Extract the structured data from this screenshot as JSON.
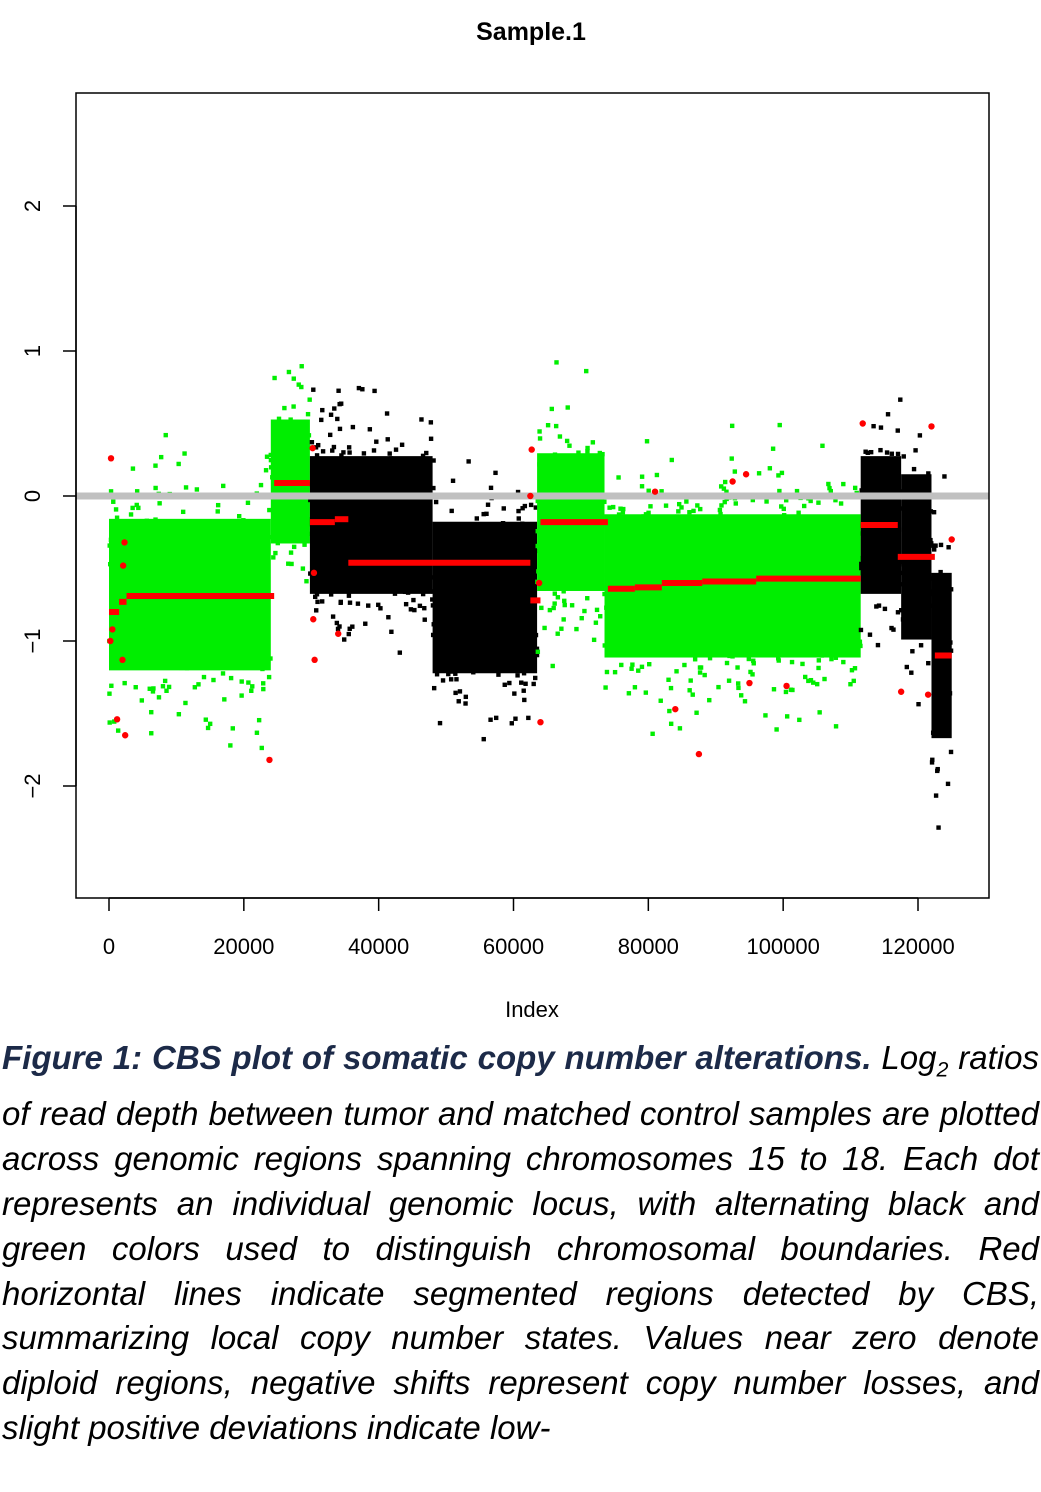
{
  "chart_data": {
    "type": "scatter",
    "title": "Sample.1",
    "xlabel": "Index",
    "ylabel": "",
    "xlim": [
      -5000,
      130000
    ],
    "ylim": [
      -2.75,
      2.75
    ],
    "x_ticks": [
      0,
      20000,
      40000,
      60000,
      80000,
      100000,
      120000
    ],
    "x_tick_labels": [
      "0",
      "20000",
      "40000",
      "60000",
      "80000",
      "100000",
      "120000"
    ],
    "y_ticks": [
      -2,
      -1,
      0,
      1,
      2
    ],
    "y_tick_labels": [
      "−2",
      "−1",
      "0",
      "1",
      "2"
    ],
    "grid": false,
    "reference_line": {
      "y": 0,
      "color": "#c0c0c0"
    },
    "colors": {
      "black_points": "#000000",
      "green_points": "#00ee00",
      "segments": "#ff0000"
    },
    "regions": [
      {
        "color": "green",
        "x_start": 0,
        "x_end": 24000,
        "center": -0.68,
        "spread": 0.55
      },
      {
        "color": "green",
        "x_start": 24000,
        "x_end": 29800,
        "center": 0.1,
        "spread": 0.45
      },
      {
        "color": "black",
        "x_start": 29800,
        "x_end": 48000,
        "center": -0.2,
        "spread": 0.5
      },
      {
        "color": "black",
        "x_start": 48000,
        "x_end": 63500,
        "center": -0.7,
        "spread": 0.55
      },
      {
        "color": "green",
        "x_start": 63500,
        "x_end": 73500,
        "center": -0.18,
        "spread": 0.5
      },
      {
        "color": "green",
        "x_start": 73500,
        "x_end": 111500,
        "center": -0.62,
        "spread": 0.52
      },
      {
        "color": "black",
        "x_start": 111500,
        "x_end": 117500,
        "center": -0.2,
        "spread": 0.5
      },
      {
        "color": "black",
        "x_start": 117500,
        "x_end": 122000,
        "center": -0.42,
        "spread": 0.6
      },
      {
        "color": "black",
        "x_start": 122000,
        "x_end": 125000,
        "center": -1.1,
        "spread": 0.6
      }
    ],
    "segments": [
      {
        "x_start": 0,
        "x_end": 1500,
        "y": -0.8
      },
      {
        "x_start": 1500,
        "x_end": 2600,
        "y": -0.73
      },
      {
        "x_start": 2600,
        "x_end": 24500,
        "y": -0.69
      },
      {
        "x_start": 24500,
        "x_end": 29800,
        "y": 0.09
      },
      {
        "x_start": 29800,
        "x_end": 33500,
        "y": -0.18
      },
      {
        "x_start": 33500,
        "x_end": 35500,
        "y": -0.16
      },
      {
        "x_start": 35500,
        "x_end": 62500,
        "y": -0.46
      },
      {
        "x_start": 62500,
        "x_end": 64000,
        "y": -0.72
      },
      {
        "x_start": 64000,
        "x_end": 74000,
        "y": -0.18
      },
      {
        "x_start": 74000,
        "x_end": 78000,
        "y": -0.64
      },
      {
        "x_start": 78000,
        "x_end": 82000,
        "y": -0.63
      },
      {
        "x_start": 82000,
        "x_end": 88000,
        "y": -0.6
      },
      {
        "x_start": 88000,
        "x_end": 96000,
        "y": -0.59
      },
      {
        "x_start": 96000,
        "x_end": 111500,
        "y": -0.57
      },
      {
        "x_start": 111500,
        "x_end": 117000,
        "y": -0.2
      },
      {
        "x_start": 117000,
        "x_end": 122500,
        "y": -0.42
      },
      {
        "x_start": 122500,
        "x_end": 125000,
        "y": -1.1
      }
    ],
    "outlier_segment_points": [
      {
        "x": 300,
        "y": 0.26
      },
      {
        "x": 200,
        "y": -1.0
      },
      {
        "x": 500,
        "y": -0.92
      },
      {
        "x": 1200,
        "y": -1.54
      },
      {
        "x": 2000,
        "y": -1.13
      },
      {
        "x": 2300,
        "y": -0.32
      },
      {
        "x": 2100,
        "y": -0.48
      },
      {
        "x": 2400,
        "y": -1.65
      },
      {
        "x": 23800,
        "y": -1.82
      },
      {
        "x": 30200,
        "y": 0.33
      },
      {
        "x": 30400,
        "y": -0.53
      },
      {
        "x": 30300,
        "y": -0.85
      },
      {
        "x": 30500,
        "y": -1.13
      },
      {
        "x": 34000,
        "y": -0.95
      },
      {
        "x": 62500,
        "y": 0.0
      },
      {
        "x": 62700,
        "y": 0.32
      },
      {
        "x": 63800,
        "y": -0.6
      },
      {
        "x": 64000,
        "y": -1.56
      },
      {
        "x": 81000,
        "y": 0.03
      },
      {
        "x": 94500,
        "y": 0.15
      },
      {
        "x": 92500,
        "y": 0.1
      },
      {
        "x": 87500,
        "y": -1.78
      },
      {
        "x": 84000,
        "y": -1.47
      },
      {
        "x": 100500,
        "y": -1.31
      },
      {
        "x": 111800,
        "y": 0.5
      },
      {
        "x": 117500,
        "y": -1.35
      },
      {
        "x": 122000,
        "y": 0.48
      },
      {
        "x": 121500,
        "y": -1.37
      },
      {
        "x": 125000,
        "y": -0.3
      },
      {
        "x": 95000,
        "y": -1.29
      }
    ]
  },
  "caption": {
    "title": "Figure 1: CBS plot of somatic copy number alterations.",
    "body_prefix": " Log",
    "subscript": "2",
    "body": " ratios of read depth between tumor and matched control samples are plotted across genomic regions spanning chromosomes 15 to 18. Each dot represents an individual genomic locus, with alternating black and green colors used to distinguish chromosomal boundaries. Red horizontal lines indicate segmented regions detected by CBS, summarizing local copy number states. Values near zero denote diploid regions, negative shifts represent copy number losses, and slight positive deviations indicate low-"
  }
}
